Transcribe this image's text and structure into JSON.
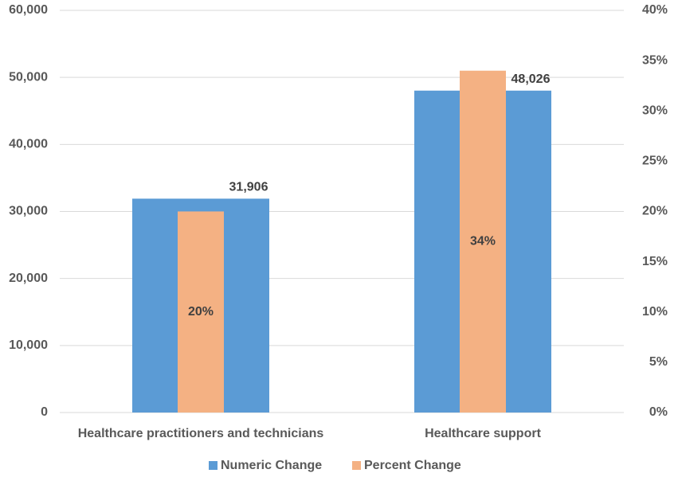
{
  "chart_data": {
    "type": "bar",
    "categories": [
      "Healthcare practitioners and technicians",
      "Healthcare support"
    ],
    "series": [
      {
        "name": "Numeric Change",
        "color": "#5b9bd5",
        "values": [
          31906,
          48026
        ],
        "value_labels": [
          "31,906",
          "48,026"
        ]
      },
      {
        "name": "Percent Change",
        "color": "#f4b183",
        "axis": "y2",
        "values": [
          20,
          34
        ],
        "value_labels": [
          "20%",
          "34%"
        ]
      }
    ],
    "ylim": [
      0,
      60000
    ],
    "yticks": [
      0,
      {
        "value": 10000,
        "label": "10,000"
      },
      {
        "value": 20000,
        "label": "20,000"
      },
      {
        "value": 30000,
        "label": "30,000"
      },
      {
        "value": 40000,
        "label": "40,000"
      },
      {
        "value": 50000,
        "label": "50,000"
      },
      {
        "value": 60000,
        "label": "60,000"
      }
    ],
    "y2lim": [
      0,
      40
    ],
    "y2ticks": [
      {
        "value": 0,
        "label": "0%"
      },
      {
        "value": 5,
        "label": "5%"
      },
      {
        "value": 10,
        "label": "10%"
      },
      {
        "value": 15,
        "label": "15%"
      },
      {
        "value": 20,
        "label": "20%"
      },
      {
        "value": 25,
        "label": "25%"
      },
      {
        "value": 30,
        "label": "30%"
      },
      {
        "value": 35,
        "label": "35%"
      },
      {
        "value": 40,
        "label": "40%"
      }
    ],
    "grid": true,
    "legend": "bottom"
  }
}
